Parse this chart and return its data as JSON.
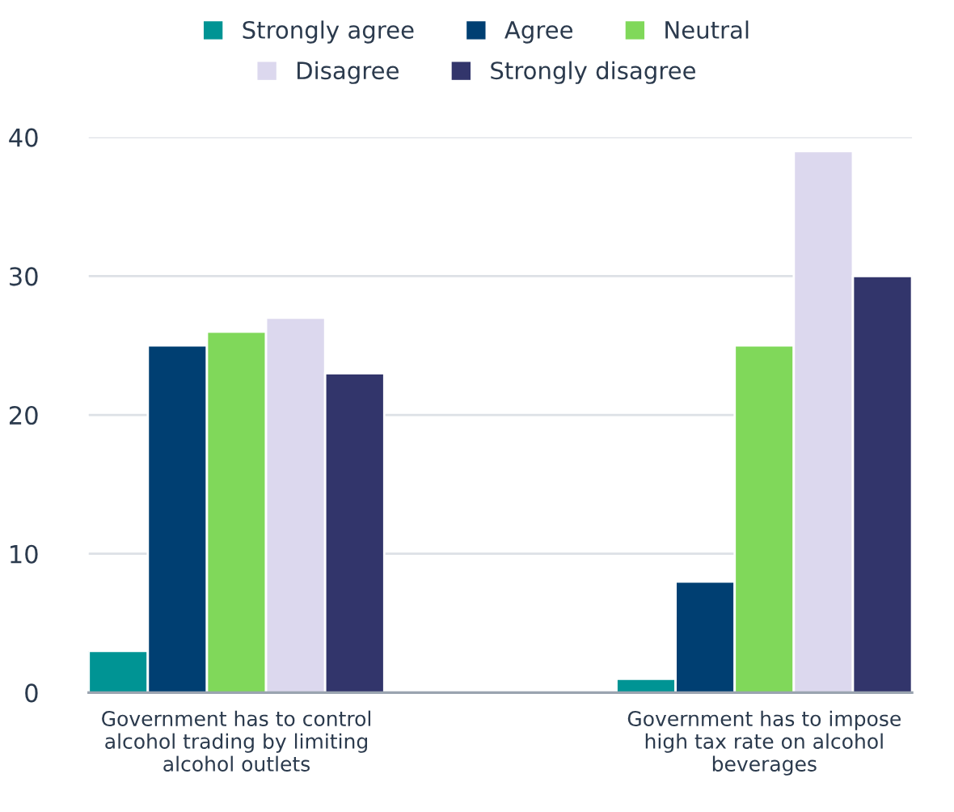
{
  "chart_data": {
    "type": "bar",
    "categories": [
      "Government has to control\nalcohol trading by limiting\nalcohol outlets",
      "Government has to impose\nhigh tax rate on alcohol\nbeverages"
    ],
    "series": [
      {
        "name": "Strongly agree",
        "color": "#009494",
        "values": [
          3,
          1
        ]
      },
      {
        "name": "Agree",
        "color": "#003f72",
        "values": [
          25,
          8
        ]
      },
      {
        "name": "Neutral",
        "color": "#80d85a",
        "values": [
          26,
          25
        ]
      },
      {
        "name": "Disagree",
        "color": "#dcd8ee",
        "values": [
          27,
          39
        ]
      },
      {
        "name": "Strongly disagree",
        "color": "#32356b",
        "values": [
          23,
          30
        ]
      }
    ],
    "ylim": [
      0,
      40
    ],
    "yticks": [
      0,
      10,
      20,
      30,
      40
    ],
    "grid": "y",
    "legend": "top"
  }
}
